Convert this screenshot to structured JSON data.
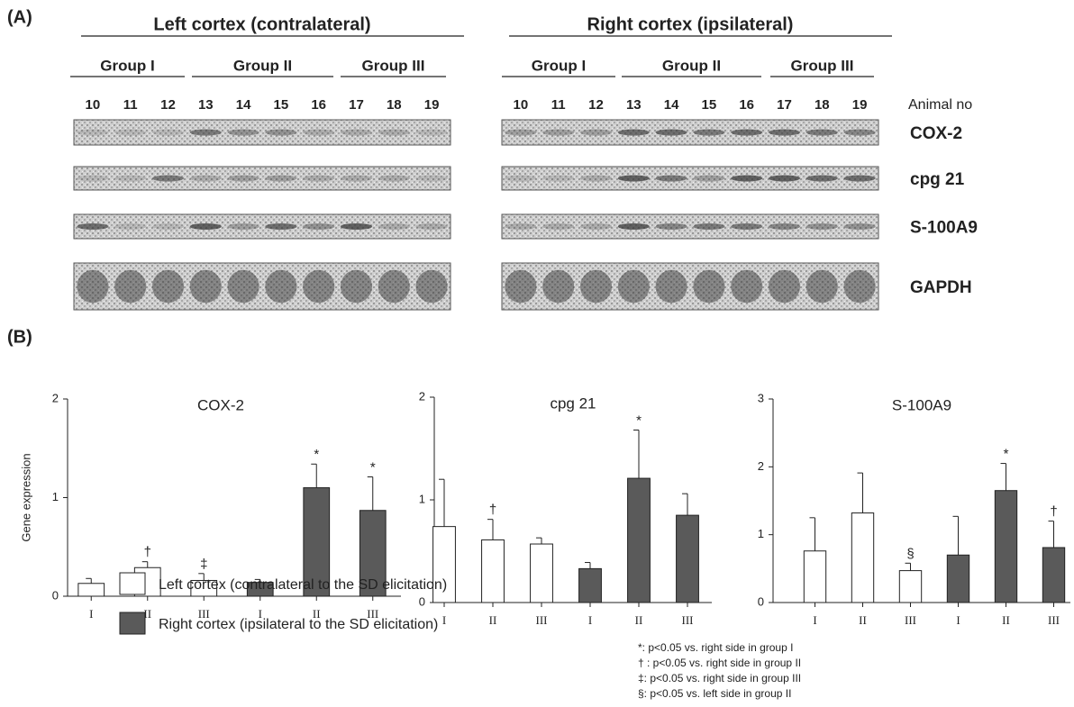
{
  "panel_a": {
    "label": "(A)",
    "regions": [
      {
        "title": "Left cortex (contralateral)",
        "groups": [
          "Group I",
          "Group II",
          "Group III"
        ],
        "animals": [
          "10",
          "11",
          "12",
          "13",
          "14",
          "15",
          "16",
          "17",
          "18",
          "19"
        ]
      },
      {
        "title": "Right cortex (ipsilateral)",
        "groups": [
          "Group I",
          "Group II",
          "Group III"
        ],
        "animals": [
          "10",
          "11",
          "12",
          "13",
          "14",
          "15",
          "16",
          "17",
          "18",
          "19"
        ]
      }
    ],
    "animal_label": "Animal no",
    "genes": [
      "COX-2",
      "cpg 21",
      "S-100A9",
      "GAPDH"
    ]
  },
  "panel_b": {
    "label": "(B)"
  },
  "legend": [
    {
      "label": "Left cortex (contralateral to the SD elicitation)",
      "color": "#ffffff"
    },
    {
      "label": "Right cortex (ipsilateral to the SD elicitation)",
      "color": "#5a5a5a"
    }
  ],
  "footnotes": [
    "*: p<0.05 vs. right side in group I",
    "† : p<0.05 vs. right side in group II",
    "‡: p<0.05 vs. right side in group III",
    "§: p<0.05 vs. left side in group II"
  ],
  "chart_data": [
    {
      "type": "bar",
      "title": "COX-2",
      "ylabel": "Gene expression",
      "categories": [
        "I",
        "II",
        "III"
      ],
      "ylim": [
        0,
        2
      ],
      "yticks": [
        0,
        1,
        2
      ],
      "series": [
        {
          "values": [
            0.13,
            0.29,
            0.16
          ],
          "errors": [
            0.05,
            0.06,
            0.07
          ],
          "marks": [
            null,
            "†",
            "‡"
          ]
        },
        {
          "values": [
            0.14,
            1.1,
            0.87
          ],
          "errors": [
            0.03,
            0.24,
            0.34
          ],
          "marks": [
            null,
            "*",
            "*"
          ]
        }
      ]
    },
    {
      "type": "bar",
      "title": "cpg 21",
      "categories": [
        "I",
        "II",
        "III"
      ],
      "ylim": [
        0,
        2
      ],
      "yticks": [
        0,
        1,
        2
      ],
      "series": [
        {
          "values": [
            0.74,
            0.61,
            0.57
          ],
          "errors": [
            0.46,
            0.2,
            0.06
          ],
          "marks": [
            null,
            "†",
            null
          ]
        },
        {
          "values": [
            0.33,
            1.21,
            0.85
          ],
          "errors": [
            0.06,
            0.47,
            0.21
          ],
          "marks": [
            null,
            "*",
            null
          ]
        }
      ]
    },
    {
      "type": "bar",
      "title": "S-100A9",
      "categories": [
        "I",
        "II",
        "III"
      ],
      "ylim": [
        0,
        3
      ],
      "yticks": [
        0,
        1,
        2,
        3
      ],
      "series": [
        {
          "values": [
            0.76,
            1.32,
            0.47
          ],
          "errors": [
            0.49,
            0.59,
            0.11
          ],
          "marks": [
            null,
            null,
            "§"
          ]
        },
        {
          "values": [
            0.7,
            1.65,
            0.81
          ],
          "errors": [
            0.57,
            0.4,
            0.39
          ],
          "marks": [
            null,
            "*",
            "†"
          ]
        }
      ]
    }
  ]
}
